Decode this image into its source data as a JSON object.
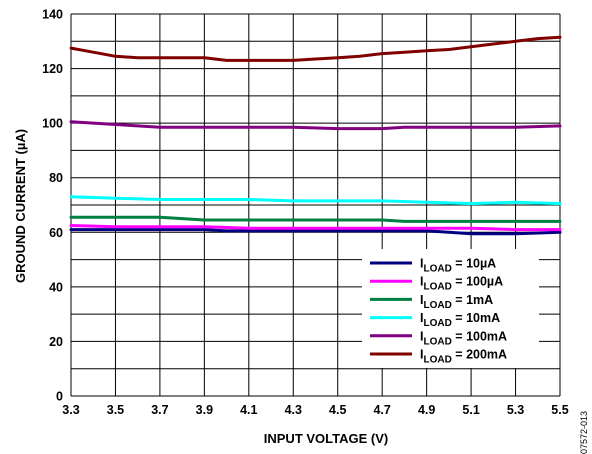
{
  "chart_data": {
    "type": "line",
    "xlabel": "INPUT VOLTAGE (V)",
    "ylabel": "GROUND CURRENT (µA)",
    "xlim": [
      3.3,
      5.5
    ],
    "ylim": [
      0,
      140
    ],
    "x_ticks": [
      "3.3",
      "3.5",
      "3.7",
      "3.9",
      "4.1",
      "4.3",
      "4.5",
      "4.7",
      "4.9",
      "5.1",
      "5.3",
      "5.5"
    ],
    "y_ticks": [
      "0",
      "20",
      "40",
      "60",
      "80",
      "100",
      "120",
      "140"
    ],
    "grid": true,
    "legend_position": "bottom-right",
    "figure_id": "07572-013",
    "series": [
      {
        "name_prefix": "I",
        "name_sub": "LOAD",
        "name_suffix": " = 10µA",
        "color": "#000080",
        "x": [
          3.3,
          3.5,
          3.7,
          3.9,
          4.0,
          4.3,
          4.5,
          4.7,
          4.9,
          5.0,
          5.1,
          5.3,
          5.5
        ],
        "y": [
          61,
          61,
          61,
          61,
          60.5,
          60.5,
          60.5,
          60.5,
          60.5,
          60,
          59.5,
          59.5,
          60
        ]
      },
      {
        "name_prefix": "I",
        "name_sub": "LOAD",
        "name_suffix": " = 100µA",
        "color": "#ff00ff",
        "x": [
          3.3,
          3.5,
          3.7,
          3.9,
          4.1,
          4.3,
          4.5,
          4.7,
          4.9,
          5.1,
          5.3,
          5.5
        ],
        "y": [
          62.5,
          62,
          62,
          62,
          61.5,
          61.5,
          61.5,
          61.5,
          61.5,
          61.5,
          61,
          61
        ]
      },
      {
        "name_prefix": "I",
        "name_sub": "LOAD",
        "name_suffix": " = 1mA",
        "color": "#008040",
        "x": [
          3.3,
          3.5,
          3.7,
          3.8,
          3.9,
          4.1,
          4.3,
          4.5,
          4.7,
          4.8,
          4.9,
          5.1,
          5.3,
          5.5
        ],
        "y": [
          65.5,
          65.5,
          65.5,
          65,
          64.5,
          64.5,
          64.5,
          64.5,
          64.5,
          64,
          64,
          64,
          64,
          64
        ]
      },
      {
        "name_prefix": "I",
        "name_sub": "LOAD",
        "name_suffix": " = 10mA",
        "color": "#00ffff",
        "x": [
          3.3,
          3.5,
          3.7,
          3.9,
          4.1,
          4.3,
          4.5,
          4.7,
          4.9,
          5.1,
          5.3,
          5.5
        ],
        "y": [
          73,
          72.5,
          72,
          72,
          72,
          71.5,
          71.5,
          71.5,
          71,
          70.5,
          71,
          70.5
        ]
      },
      {
        "name_prefix": "I",
        "name_sub": "LOAD",
        "name_suffix": " = 100mA",
        "color": "#800080",
        "x": [
          3.3,
          3.5,
          3.7,
          3.9,
          4.1,
          4.3,
          4.5,
          4.7,
          4.8,
          4.9,
          5.1,
          5.3,
          5.5
        ],
        "y": [
          100.5,
          99.5,
          98.5,
          98.5,
          98.5,
          98.5,
          98,
          98,
          98.5,
          98.5,
          98.5,
          98.5,
          99
        ]
      },
      {
        "name_prefix": "I",
        "name_sub": "LOAD",
        "name_suffix": " = 200mA",
        "color": "#800000",
        "x": [
          3.3,
          3.4,
          3.5,
          3.6,
          3.7,
          3.8,
          3.9,
          4.0,
          4.1,
          4.2,
          4.3,
          4.4,
          4.5,
          4.6,
          4.7,
          4.8,
          4.9,
          5.0,
          5.1,
          5.2,
          5.3,
          5.4,
          5.5
        ],
        "y": [
          127.5,
          126,
          124.5,
          124,
          124,
          124,
          124,
          123,
          123,
          123,
          123,
          123.5,
          124,
          124.5,
          125.5,
          126,
          126.5,
          127,
          128,
          129,
          130,
          131,
          131.5
        ]
      }
    ]
  }
}
